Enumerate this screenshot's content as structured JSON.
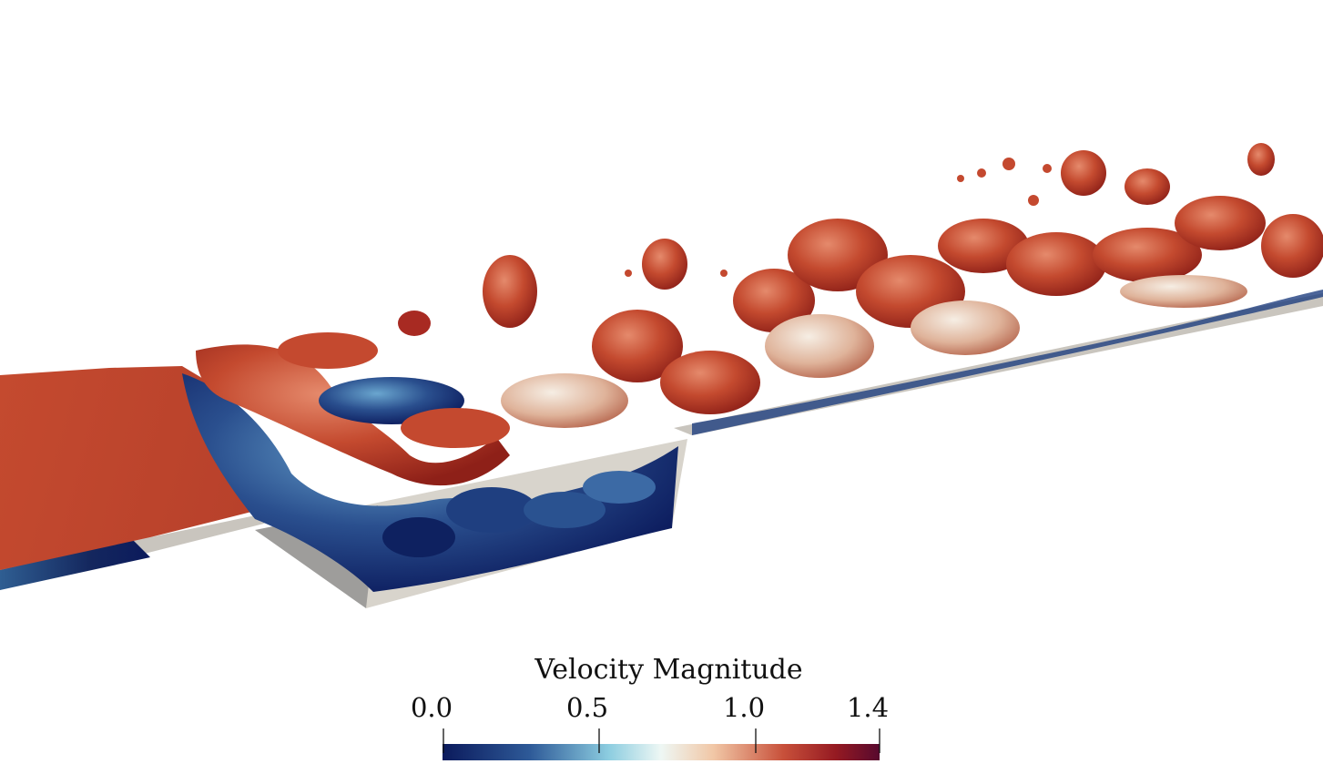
{
  "colorbar": {
    "title": "Velocity Magnitude",
    "ticks": [
      "0.0",
      "0.5",
      "1.0",
      "1.4"
    ],
    "range": [
      0.0,
      1.4
    ],
    "colormap": [
      "#0b1a5c",
      "#3a6aa6",
      "#c6ecf2",
      "#f6e6d6",
      "#d0705a",
      "#a0201d",
      "#5c0a2c"
    ]
  },
  "scene": {
    "wall_color": "#c9c5be",
    "step_face_color": "#9e9d9b",
    "surface_color": "#c4492f"
  }
}
